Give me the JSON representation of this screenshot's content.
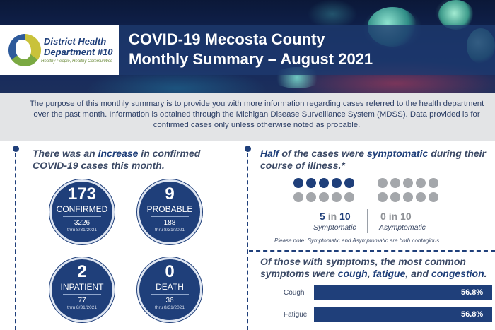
{
  "header": {
    "logo_name": "District Health Department #10",
    "logo_tagline": "Healthy People, Healthy Communities",
    "title_line1": "COVID-19 Mecosta County",
    "title_line2": "Monthly Summary – August 2021"
  },
  "intro": "The purpose of this monthly summary is to provide you with more information regarding cases referred to the health department over the past month. Information is obtained through the Michigan Disease Surveillance System (MDSS). Data provided is for confirmed cases only unless otherwise noted as probable.",
  "cases_section": {
    "heading_pre": "There was an ",
    "heading_highlight": "increase",
    "heading_post": " in confirmed COVID-19 cases this month.",
    "stats": [
      {
        "value": "173",
        "label": "CONFIRMED",
        "cumulative": "3226",
        "thru": "thru 8/31/2021"
      },
      {
        "value": "9",
        "label": "PROBABLE",
        "cumulative": "188",
        "thru": "thru 8/31/2021"
      },
      {
        "value": "2",
        "label": "INPATIENT",
        "cumulative": "77",
        "thru": "thru 8/31/2021"
      },
      {
        "value": "0",
        "label": "DEATH",
        "cumulative": "36",
        "thru": "thru 8/31/2021"
      }
    ]
  },
  "symptom_section": {
    "heading_highlight1": "Half",
    "heading_mid": " of the cases were ",
    "heading_highlight2": "symptomatic",
    "heading_post": " during their course of illness.*",
    "symptomatic": {
      "filled": 5,
      "total": 10,
      "ratio_num": "5",
      "ratio_in": "in",
      "ratio_den": "10",
      "label": "Symptomatic",
      "color": "#1f3f7a"
    },
    "asymptomatic": {
      "filled": 0,
      "total": 10,
      "ratio_num": "0",
      "ratio_in": "in",
      "ratio_den": "10",
      "label": "Asymptomatic",
      "color": "#8e9196"
    },
    "note": "Please note: Symptomatic and Asymptomatic are both contagious"
  },
  "common_symptoms": {
    "heading_pre": "Of those with symptoms, the most common symptoms were ",
    "h1": "cough",
    "sep1": ", ",
    "h2": "fatigue",
    "sep2": ", and ",
    "h3": "congestion",
    "end": ".",
    "chart_data": {
      "type": "bar",
      "categories": [
        "Cough",
        "Fatigue"
      ],
      "values": [
        56.8,
        56.8
      ],
      "value_labels": [
        "56.8%",
        "56.8%"
      ],
      "xlim": [
        0,
        100
      ]
    }
  }
}
